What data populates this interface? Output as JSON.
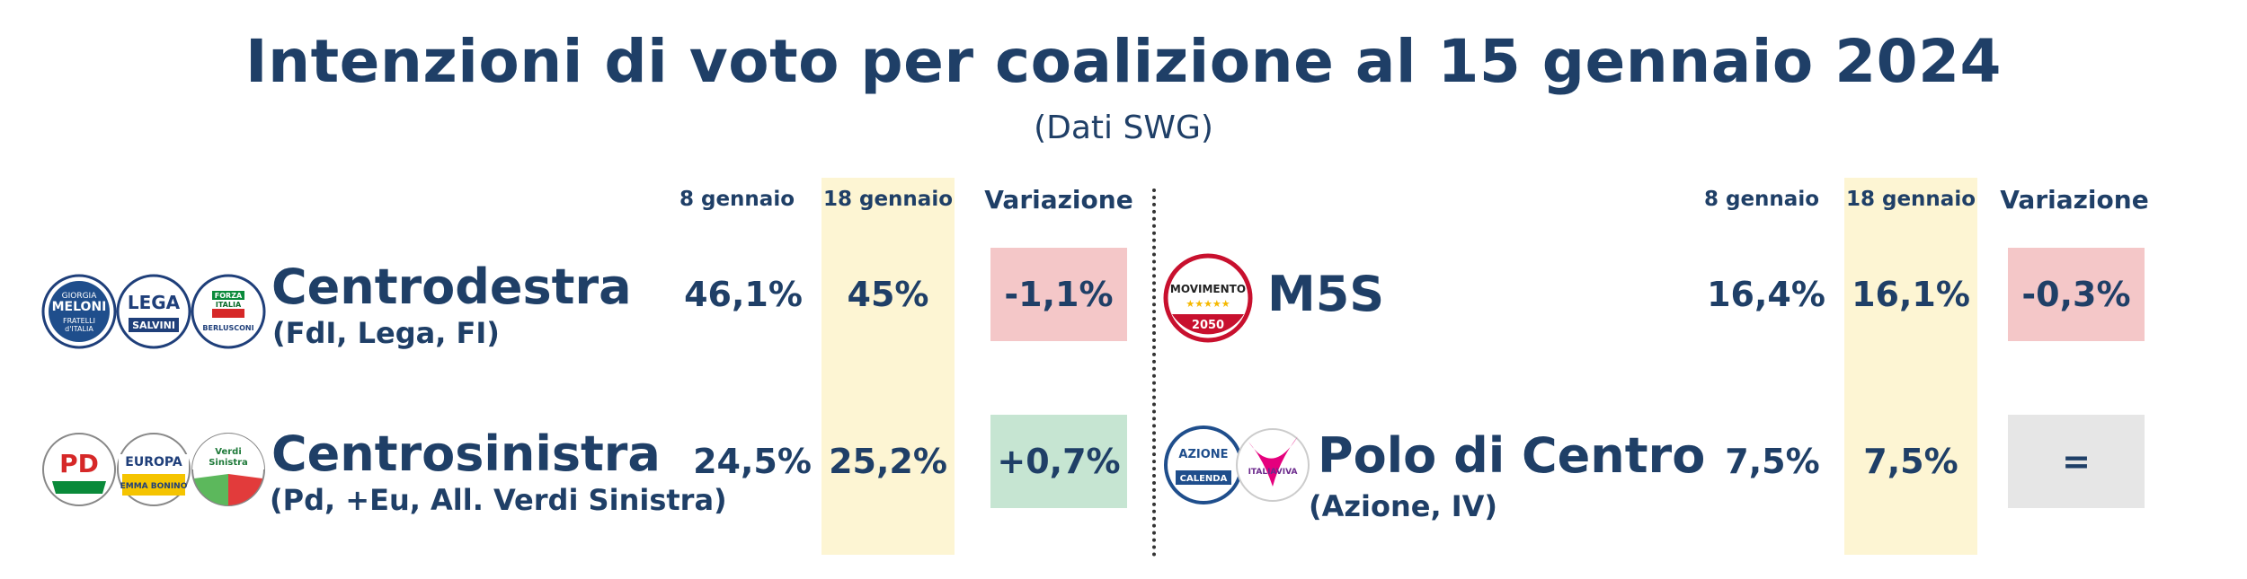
{
  "title": "Intenzioni di voto per coalizione al 15 gennaio 2024",
  "subtitle": "(Dati SWG)",
  "columns": {
    "prev": "8 gennaio",
    "curr": "18 gennaio",
    "change": "Variazione"
  },
  "colors": {
    "text": "#1f3f67",
    "highlight": "#fdf5d3",
    "negative": "#f4c7c8",
    "positive": "#c6e5d2",
    "neutral": "#e6e6e6"
  },
  "chart_data": {
    "type": "table",
    "title": "Intenzioni di voto per coalizione al 15 gennaio 2024",
    "subtitle": "(Dati SWG)",
    "columns": [
      "8 gennaio",
      "18 gennaio",
      "Variazione"
    ],
    "rows": [
      {
        "name": "Centrodestra",
        "detail": "(FdI, Lega, FI)",
        "prev": "46,1%",
        "curr": "45%",
        "change": "-1,1%",
        "direction": "down",
        "logos": [
          "Giorgia Meloni Fratelli d'Italia",
          "Lega Salvini Premier",
          "Forza Italia Berlusconi Presidente"
        ]
      },
      {
        "name": "Centrosinistra",
        "detail": "(Pd, +Eu, All. Verdi Sinistra)",
        "prev": "24,5%",
        "curr": "25,2%",
        "change": "+0,7%",
        "direction": "up",
        "logos": [
          "Partito Democratico",
          "+Europa Emma Bonino",
          "Alleanza Verdi Sinistra"
        ]
      },
      {
        "name": "M5S",
        "detail": "",
        "prev": "16,4%",
        "curr": "16,1%",
        "change": "-0,3%",
        "direction": "down",
        "logos": [
          "MoVimento 5 Stelle 2050"
        ]
      },
      {
        "name": "Polo di Centro",
        "detail": "(Azione, IV)",
        "prev": "7,5%",
        "curr": "7,5%",
        "change": "=",
        "direction": "same",
        "logos": [
          "Azione con Calenda",
          "Italia Viva"
        ]
      }
    ]
  },
  "logo_text": {
    "fdi_top": "GIORGIA",
    "fdi_name": "MELONI",
    "fdi_bottom": "FRATELLI",
    "fdi_bottom2": "d'ITALIA",
    "lega": "LEGA",
    "lega_name": "SALVINI",
    "fi_top": "FORZA",
    "fi_mid": "ITALIA",
    "fi_name": "BERLUSCONI",
    "pd": "PD",
    "europa": "EUROPA",
    "europa_name": "EMMA BONINO",
    "avs_top": "Verdi",
    "avs_mid": "Sinistra",
    "m5s": "MOVIMENTO",
    "m5s_year": "2050",
    "azione": "AZIONE",
    "azione_name": "CALENDA",
    "iv": "ITALIAVIVA"
  }
}
